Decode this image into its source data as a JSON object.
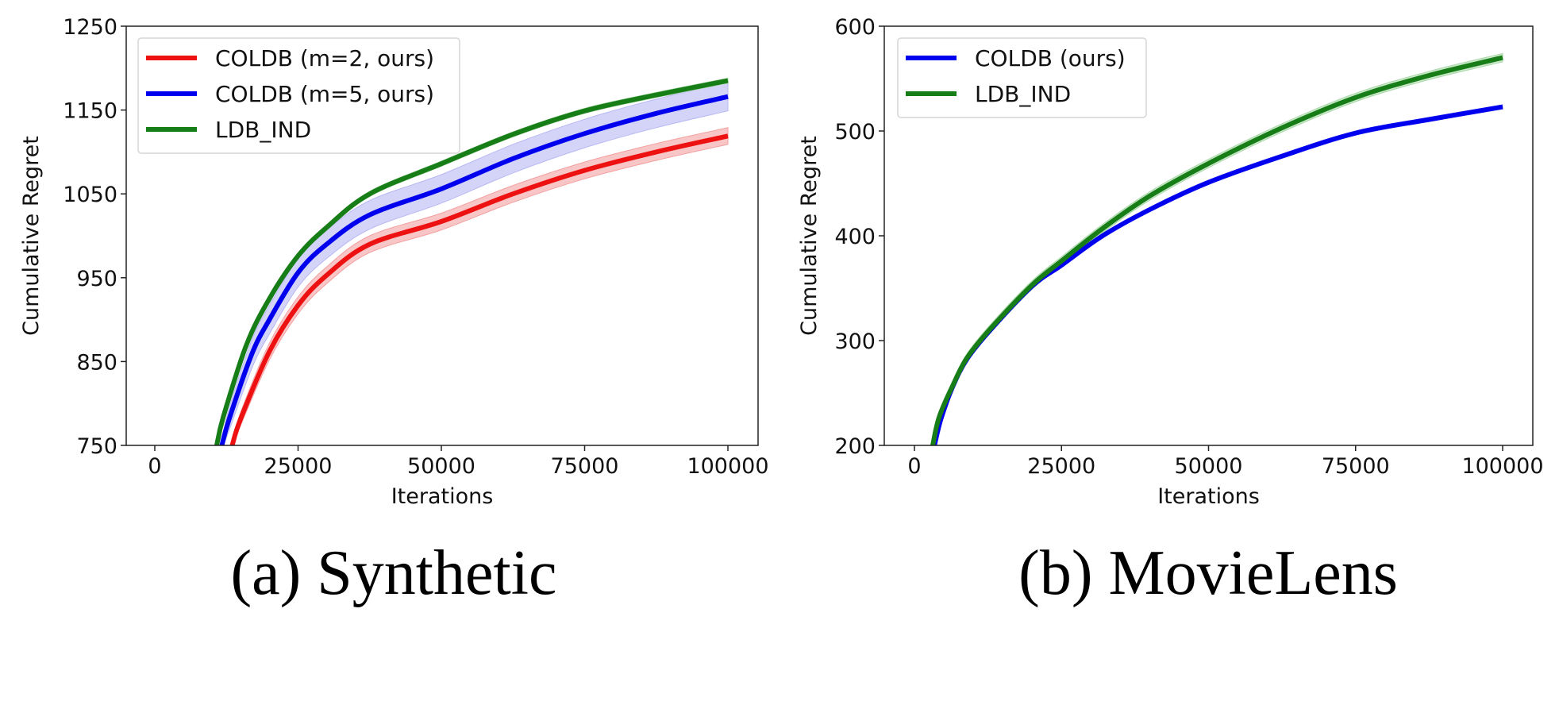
{
  "chart_data": [
    {
      "type": "line",
      "caption": "(a) Synthetic",
      "title": "",
      "xlabel": "Iterations",
      "ylabel": "Cumulative Regret",
      "xlim": [
        -4000,
        105000
      ],
      "ylim": [
        750,
        1250
      ],
      "xticks": [
        0,
        25000,
        50000,
        75000,
        100000
      ],
      "xtick_labels": [
        "0",
        "25000",
        "50000",
        "75000",
        "100000"
      ],
      "yticks": [
        750,
        850,
        950,
        1050,
        1150,
        1250
      ],
      "ytick_labels": [
        "750",
        "850",
        "950",
        "1050",
        "1150",
        "1250"
      ],
      "grid": false,
      "legend_position": "top-left",
      "series": [
        {
          "name": "COLDB (m=2, ours)",
          "color": "#ee1111",
          "band_color": "#f4a0a0",
          "band_halfwidth": 10,
          "x": [
            13500,
            15000,
            20000,
            25000,
            30000,
            37500,
            50000,
            62500,
            75000,
            87500,
            100000
          ],
          "y": [
            750,
            782,
            862,
            917,
            953,
            990,
            1017,
            1050,
            1078,
            1100,
            1119
          ]
        },
        {
          "name": "COLDB (m=5, ours)",
          "color": "#0000ee",
          "band_color": "#b8b8f4",
          "band_halfwidth": 17,
          "x": [
            11700,
            13000,
            17000,
            20000,
            25000,
            30000,
            37500,
            50000,
            62500,
            75000,
            87500,
            100000
          ],
          "y": [
            750,
            782,
            860,
            900,
            956,
            990,
            1025,
            1056,
            1092,
            1122,
            1146,
            1166
          ],
          "band_start": 0
        },
        {
          "name": "LDB_IND",
          "color": "#177d17",
          "band_color": "#a8d8a8",
          "band_halfwidth": 3,
          "x": [
            10800,
            12000,
            16000,
            20000,
            25000,
            30000,
            37500,
            50000,
            62500,
            75000,
            87500,
            100000
          ],
          "y": [
            750,
            785,
            870,
            925,
            976,
            1010,
            1050,
            1086,
            1121,
            1149,
            1168,
            1185
          ]
        }
      ]
    },
    {
      "type": "line",
      "caption": "(b) MovieLens",
      "title": "",
      "xlabel": "Iterations",
      "ylabel": "Cumulative Regret",
      "xlim": [
        -4000,
        105000
      ],
      "ylim": [
        200,
        600
      ],
      "xticks": [
        0,
        25000,
        50000,
        75000,
        100000
      ],
      "xtick_labels": [
        "0",
        "25000",
        "50000",
        "75000",
        "100000"
      ],
      "yticks": [
        200,
        300,
        400,
        500,
        600
      ],
      "ytick_labels": [
        "200",
        "300",
        "400",
        "500",
        "600"
      ],
      "grid": false,
      "legend_position": "top-left",
      "series": [
        {
          "name": "COLDB (ours)",
          "color": "#0000ee",
          "band_color": "#b8b8f4",
          "band_halfwidth": 2,
          "x": [
            3400,
            4500,
            6500,
            9000,
            13200,
            20000,
            25000,
            32000,
            40000,
            50000,
            62500,
            75000,
            87500,
            100000
          ],
          "y": [
            200,
            225,
            256,
            283,
            312,
            352,
            372,
            400,
            425,
            451,
            476,
            498,
            511,
            523
          ]
        },
        {
          "name": "LDB_IND",
          "color": "#177d17",
          "band_color": "#a8d8a8",
          "band_halfwidth": 4,
          "x": [
            3100,
            4200,
            6500,
            9000,
            13200,
            20000,
            25000,
            32000,
            40000,
            50000,
            62500,
            75000,
            87500,
            100000
          ],
          "y": [
            200,
            227,
            257,
            284,
            313,
            353,
            376,
            407,
            438,
            469,
            503,
            532,
            553,
            570
          ]
        }
      ]
    }
  ]
}
